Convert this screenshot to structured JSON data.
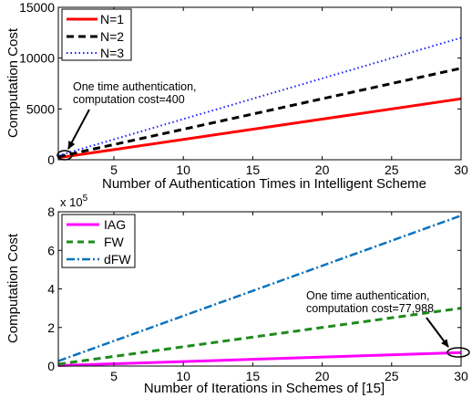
{
  "chart_data": [
    {
      "type": "line",
      "xlabel": "Number of Authentication Times in Intelligent Scheme",
      "ylabel": "Computation Cost",
      "xlim": [
        1,
        30
      ],
      "ylim": [
        0,
        15000
      ],
      "xticks": [
        5,
        10,
        15,
        20,
        25,
        30
      ],
      "yticks": [
        0,
        5000,
        10000,
        15000
      ],
      "grid": false,
      "legend_position": "top-left",
      "series": [
        {
          "name": "N=1",
          "color": "#ff0000",
          "style": "solid",
          "x": [
            1,
            30
          ],
          "y": [
            200,
            6000
          ]
        },
        {
          "name": "N=2",
          "color": "#000000",
          "style": "dashed",
          "x": [
            1,
            30
          ],
          "y": [
            300,
            9000
          ]
        },
        {
          "name": "N=3",
          "color": "#1a1aff",
          "style": "dotted",
          "x": [
            1,
            30
          ],
          "y": [
            400,
            12000
          ]
        }
      ],
      "annotation": {
        "text_lines": [
          "One time authentication,",
          "computation cost=400"
        ],
        "point": {
          "x": 1,
          "y": 400
        }
      }
    },
    {
      "type": "line",
      "xlabel": "Number of Iterations in Schemes of [15]",
      "ylabel": "Computation Cost",
      "xlim": [
        1,
        30
      ],
      "ylim": [
        0,
        8
      ],
      "yscale_label": "x 10",
      "yscale_exp": "5",
      "xticks": [
        5,
        10,
        15,
        20,
        25,
        30
      ],
      "yticks": [
        0,
        2,
        4,
        6,
        8
      ],
      "grid": false,
      "legend_position": "top-left",
      "series": [
        {
          "name": "IAG",
          "color": "#ff00ff",
          "style": "solid",
          "x": [
            1,
            30
          ],
          "y": [
            0.026,
            0.7
          ]
        },
        {
          "name": "FW",
          "color": "#1f8a1f",
          "style": "dashed",
          "x": [
            1,
            30
          ],
          "y": [
            0.1,
            3.0
          ]
        },
        {
          "name": "dFW",
          "color": "#0a72bd",
          "style": "dashdot",
          "x": [
            1,
            30
          ],
          "y": [
            0.26,
            7.8
          ]
        }
      ],
      "annotation": {
        "text_lines": [
          "One time authentication,",
          "computation cost=77,988"
        ],
        "point": {
          "x": 30,
          "y": 0.78
        }
      }
    }
  ]
}
